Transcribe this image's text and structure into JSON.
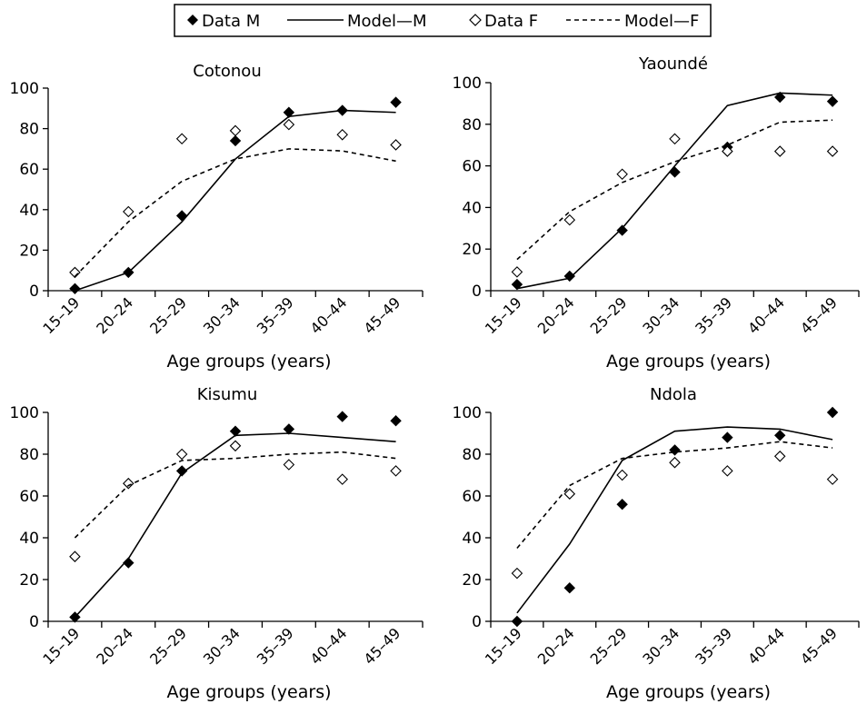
{
  "legend": {
    "items": [
      {
        "label": "Data M",
        "kind": "marker-filled"
      },
      {
        "label": "Model—M",
        "kind": "line-solid"
      },
      {
        "label": "Data F",
        "kind": "marker-open"
      },
      {
        "label": "Model—F",
        "kind": "line-dashed"
      }
    ]
  },
  "colors": {
    "ink": "#000000",
    "background": "#ffffff"
  },
  "chart_data": [
    {
      "type": "line",
      "title": "Cotonou",
      "xlabel": "Age groups (years)",
      "ylabel": "",
      "categories": [
        "15–19",
        "20–24",
        "25–29",
        "30–34",
        "35–39",
        "40–44",
        "45–49"
      ],
      "ylim": [
        0,
        100
      ],
      "yticks": [
        "0",
        "20",
        "40",
        "60",
        "80",
        "100"
      ],
      "series": [
        {
          "name": "Data M",
          "style": "marker-filled",
          "values": [
            1,
            9,
            37,
            74,
            88,
            89,
            93
          ]
        },
        {
          "name": "Model—M",
          "style": "line-solid",
          "values": [
            0,
            9,
            34,
            65,
            86,
            89,
            88
          ]
        },
        {
          "name": "Data F",
          "style": "marker-open",
          "values": [
            9,
            39,
            75,
            79,
            82,
            77,
            72
          ]
        },
        {
          "name": "Model—F",
          "style": "line-dashed",
          "values": [
            7,
            34,
            54,
            65,
            70,
            69,
            64
          ]
        }
      ]
    },
    {
      "type": "line",
      "title": "Yaoundé",
      "xlabel": "Age groups (years)",
      "ylabel": "",
      "categories": [
        "15–19",
        "20–24",
        "25–29",
        "30–34",
        "35–39",
        "40–44",
        "45–49"
      ],
      "ylim": [
        0,
        100
      ],
      "yticks": [
        "0",
        "20",
        "40",
        "60",
        "80",
        "100"
      ],
      "series": [
        {
          "name": "Data M",
          "style": "marker-filled",
          "values": [
            3,
            7,
            29,
            57,
            69,
            93,
            91
          ]
        },
        {
          "name": "Model—M",
          "style": "line-solid",
          "values": [
            1,
            6,
            30,
            60,
            89,
            95,
            94
          ]
        },
        {
          "name": "Data F",
          "style": "marker-open",
          "values": [
            9,
            34,
            56,
            73,
            67,
            67,
            67
          ]
        },
        {
          "name": "Model—F",
          "style": "line-dashed",
          "values": [
            15,
            38,
            52,
            62,
            70,
            81,
            82
          ]
        }
      ]
    },
    {
      "type": "line",
      "title": "Kisumu",
      "xlabel": "Age groups (years)",
      "ylabel": "",
      "categories": [
        "15–19",
        "20–24",
        "25–29",
        "30–34",
        "35–39",
        "40–44",
        "45–49"
      ],
      "ylim": [
        0,
        100
      ],
      "yticks": [
        "0",
        "20",
        "40",
        "60",
        "80",
        "100"
      ],
      "series": [
        {
          "name": "Data M",
          "style": "marker-filled",
          "values": [
            2,
            28,
            72,
            91,
            92,
            98,
            96
          ]
        },
        {
          "name": "Model—M",
          "style": "line-solid",
          "values": [
            2,
            30,
            71,
            89,
            90,
            88,
            86
          ]
        },
        {
          "name": "Data F",
          "style": "marker-open",
          "values": [
            31,
            66,
            80,
            84,
            75,
            68,
            72
          ]
        },
        {
          "name": "Model—F",
          "style": "line-dashed",
          "values": [
            40,
            65,
            77,
            78,
            80,
            81,
            78
          ]
        }
      ]
    },
    {
      "type": "line",
      "title": "Ndola",
      "xlabel": "Age groups (years)",
      "ylabel": "",
      "categories": [
        "15–19",
        "20–24",
        "25–29",
        "30–34",
        "35–39",
        "40–44",
        "45–49"
      ],
      "ylim": [
        0,
        100
      ],
      "yticks": [
        "0",
        "20",
        "40",
        "60",
        "80",
        "100"
      ],
      "series": [
        {
          "name": "Data M",
          "style": "marker-filled",
          "values": [
            0,
            16,
            56,
            82,
            88,
            89,
            100
          ]
        },
        {
          "name": "Model—M",
          "style": "line-solid",
          "values": [
            4,
            37,
            77,
            91,
            93,
            92,
            87
          ]
        },
        {
          "name": "Data F",
          "style": "marker-open",
          "values": [
            23,
            61,
            70,
            76,
            72,
            79,
            68
          ]
        },
        {
          "name": "Model—F",
          "style": "line-dashed",
          "values": [
            35,
            65,
            78,
            81,
            83,
            86,
            83
          ]
        }
      ]
    }
  ]
}
